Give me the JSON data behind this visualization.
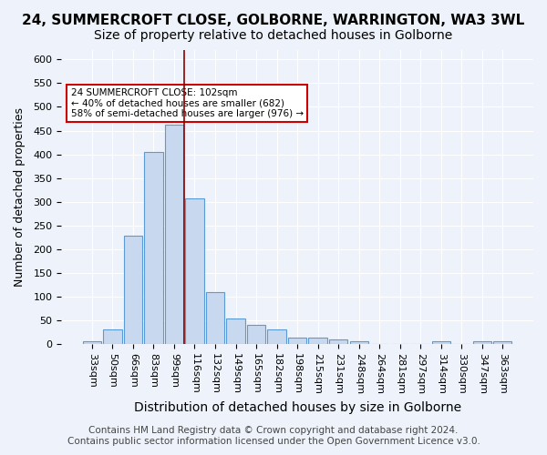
{
  "title_line1": "24, SUMMERCROFT CLOSE, GOLBORNE, WARRINGTON, WA3 3WL",
  "title_line2": "Size of property relative to detached houses in Golborne",
  "xlabel": "Distribution of detached houses by size in Golborne",
  "ylabel": "Number of detached properties",
  "categories": [
    "33sqm",
    "50sqm",
    "66sqm",
    "83sqm",
    "99sqm",
    "116sqm",
    "132sqm",
    "149sqm",
    "165sqm",
    "182sqm",
    "198sqm",
    "215sqm",
    "231sqm",
    "248sqm",
    "264sqm",
    "281sqm",
    "297sqm",
    "314sqm",
    "330sqm",
    "347sqm",
    "363sqm"
  ],
  "values": [
    5,
    30,
    228,
    404,
    462,
    307,
    110,
    53,
    40,
    30,
    14,
    14,
    10,
    5,
    0,
    0,
    0,
    5,
    0,
    5,
    5
  ],
  "bar_color": "#c8d9ef",
  "bar_edge_color": "#5b9bd5",
  "vline_x": 5,
  "vline_color": "#8b0000",
  "annotation_text": "24 SUMMERCROFT CLOSE: 102sqm\n← 40% of detached houses are smaller (682)\n58% of semi-detached houses are larger (976) →",
  "annotation_box_color": "#ffffff",
  "annotation_box_edge": "#cc0000",
  "ylim": [
    0,
    620
  ],
  "yticks": [
    0,
    50,
    100,
    150,
    200,
    250,
    300,
    350,
    400,
    450,
    500,
    550,
    600
  ],
  "footer_line1": "Contains HM Land Registry data © Crown copyright and database right 2024.",
  "footer_line2": "Contains public sector information licensed under the Open Government Licence v3.0.",
  "background_color": "#eef3fb",
  "grid_color": "#ffffff",
  "title1_fontsize": 11,
  "title2_fontsize": 10,
  "xlabel_fontsize": 10,
  "ylabel_fontsize": 9,
  "footer_fontsize": 7.5,
  "tick_fontsize": 8
}
